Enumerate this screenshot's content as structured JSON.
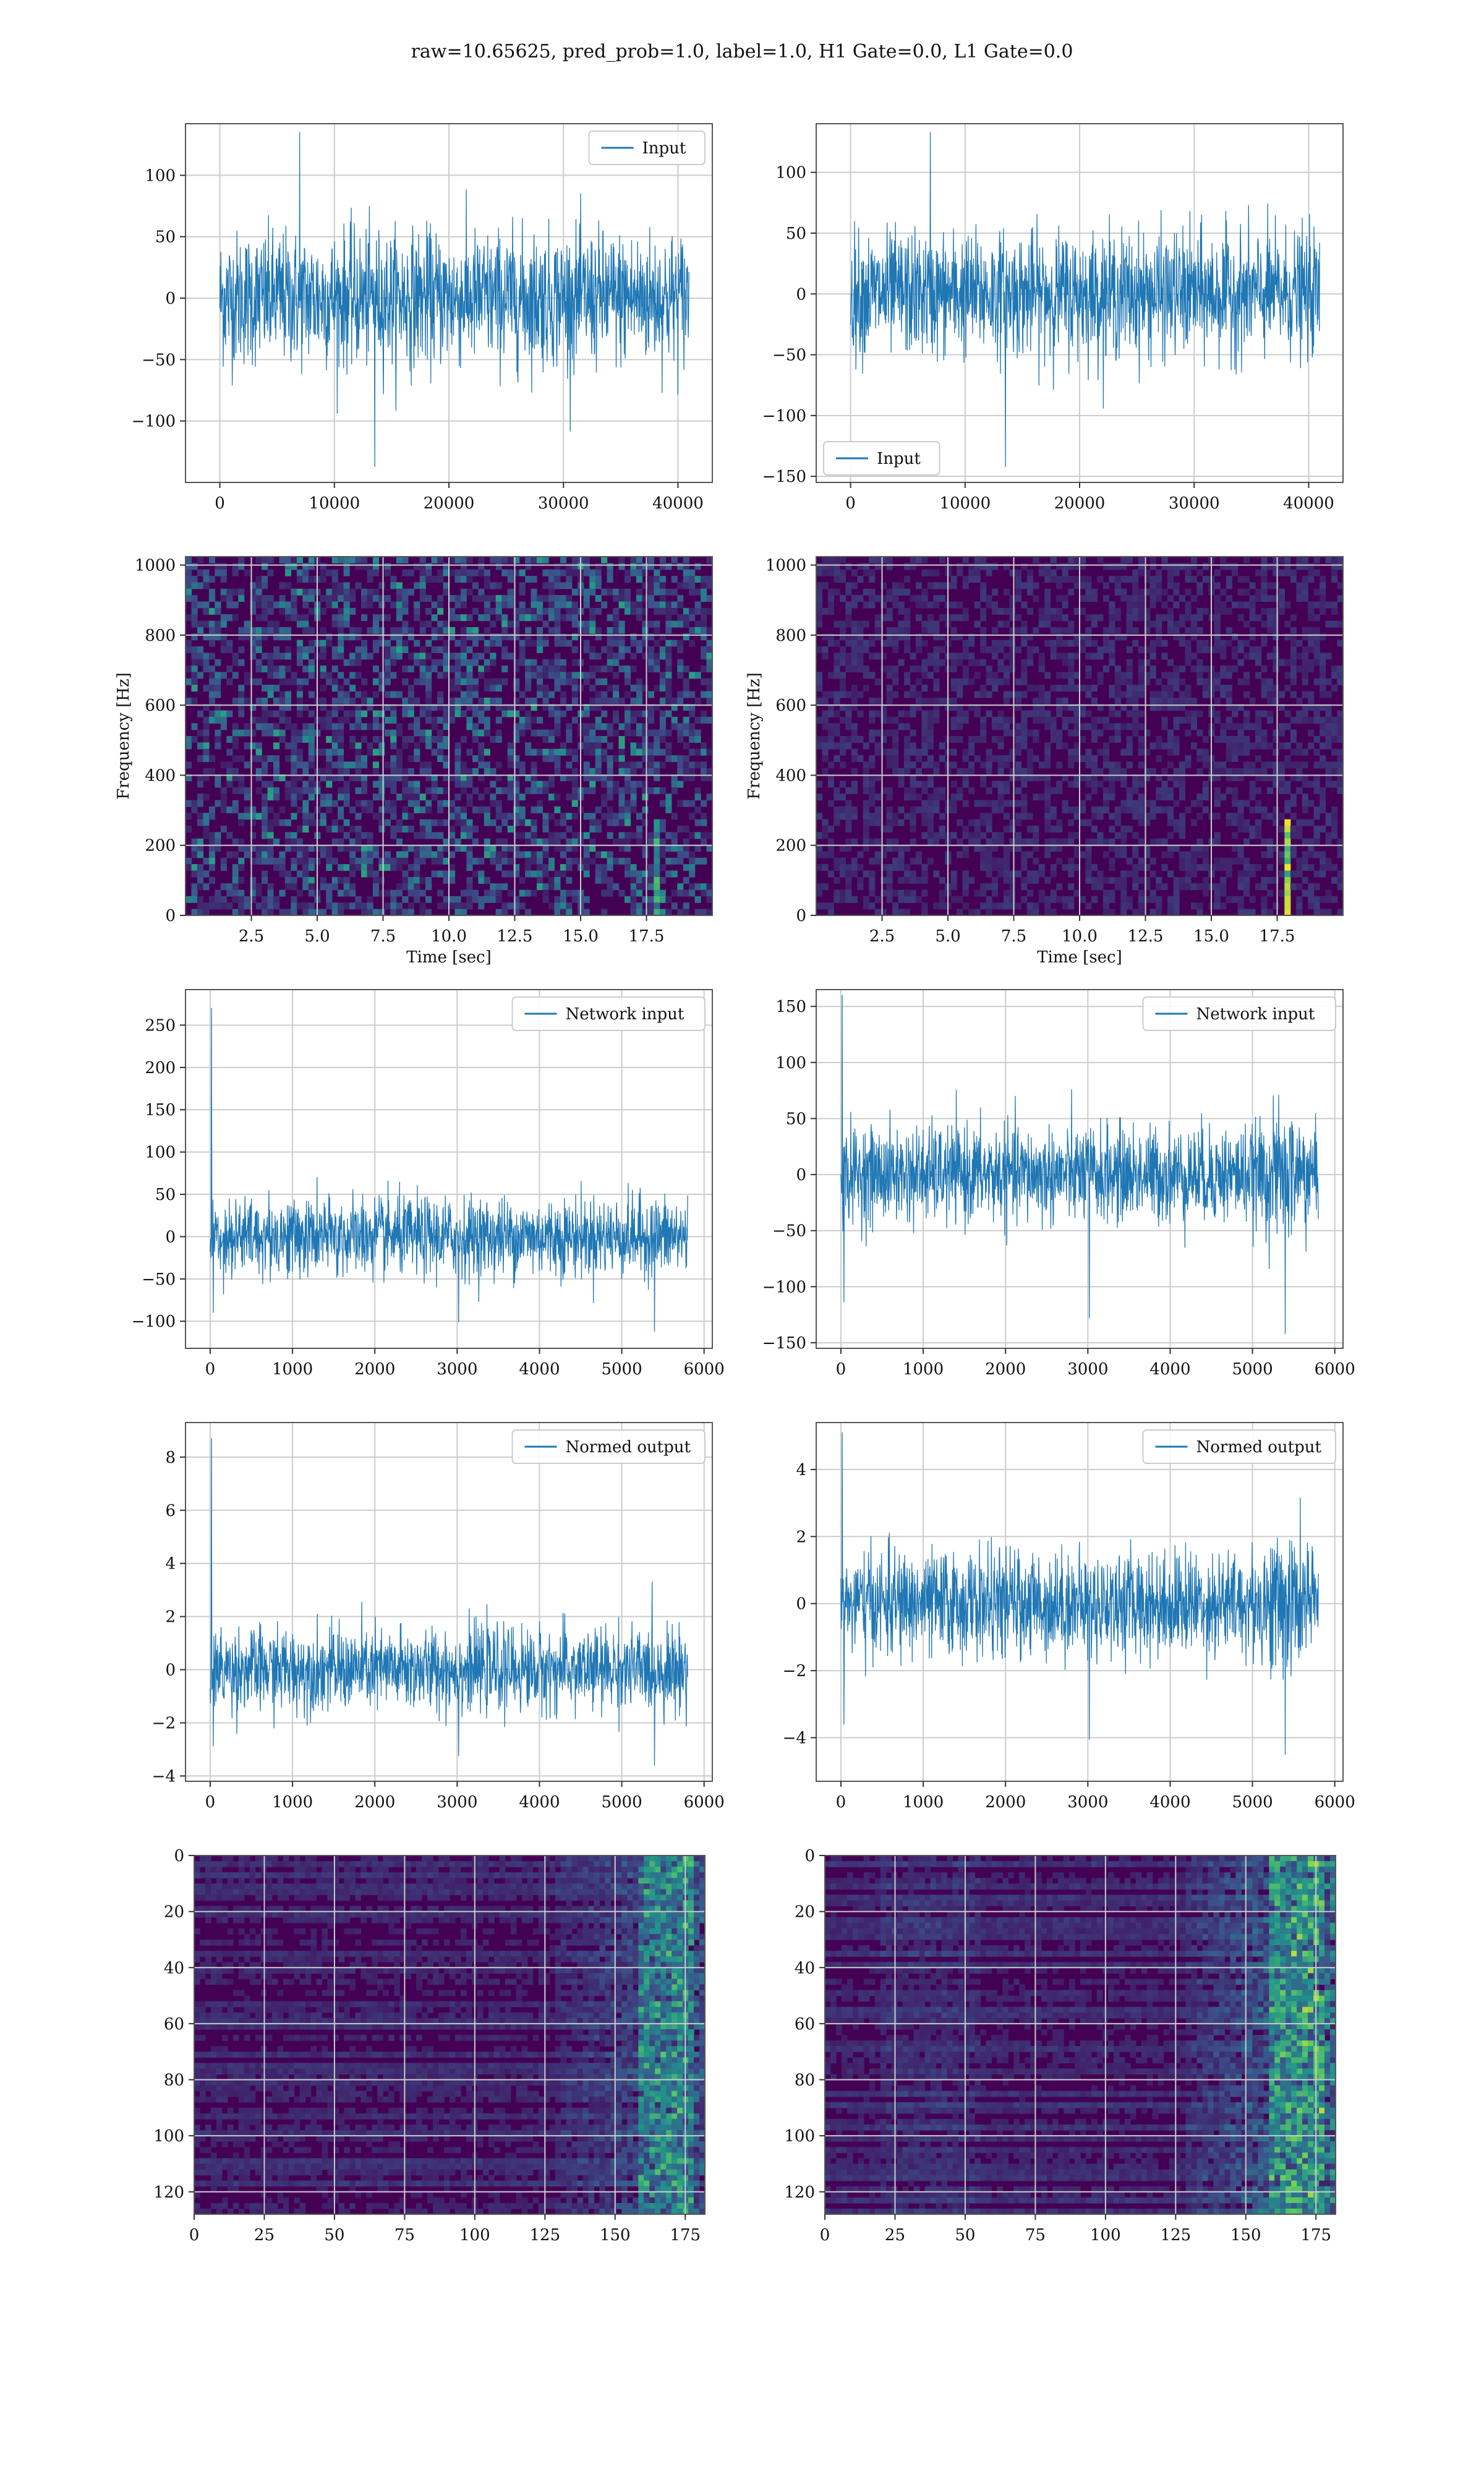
{
  "figure": {
    "title": "raw=10.65625, pred_prob=1.0, label=1.0, H1 Gate=0.0, L1 Gate=0.0",
    "colors": {
      "line": "#1f77b4",
      "grid": "#cccccc",
      "spec_low": "#440154",
      "spec_mid": "#21918c",
      "spec_high": "#fde725"
    }
  },
  "chart_data": [
    {
      "id": "r1c1",
      "type": "line",
      "title": "",
      "xlabel": "",
      "ylabel": "",
      "xlim": [
        -3000,
        43000
      ],
      "ylim": [
        -150,
        142
      ],
      "xticks": [
        0,
        10000,
        20000,
        30000,
        40000
      ],
      "xtick_labels": [
        "0",
        "10000",
        "20000",
        "30000",
        "40000"
      ],
      "yticks": [
        -100,
        -50,
        0,
        50,
        100
      ],
      "ytick_labels": [
        "−100",
        "−50",
        "0",
        "50",
        "100"
      ],
      "series": [
        {
          "name": "Input",
          "x_range": [
            0,
            40960
          ],
          "typical_range": [
            -70,
            70
          ],
          "extremes": [
            135,
            -137
          ]
        }
      ],
      "legend": "upper right",
      "grid": true
    },
    {
      "id": "r1c2",
      "type": "line",
      "title": "",
      "xlabel": "",
      "ylabel": "",
      "xlim": [
        -3000,
        43000
      ],
      "ylim": [
        -155,
        140
      ],
      "xticks": [
        0,
        10000,
        20000,
        30000,
        40000
      ],
      "xtick_labels": [
        "0",
        "10000",
        "20000",
        "30000",
        "40000"
      ],
      "yticks": [
        -150,
        -100,
        -50,
        0,
        50,
        100
      ],
      "ytick_labels": [
        "−150",
        "−100",
        "−50",
        "0",
        "50",
        "100"
      ],
      "series": [
        {
          "name": "Input",
          "x_range": [
            0,
            40960
          ],
          "typical_range": [
            -65,
            65
          ],
          "extremes": [
            133,
            -142
          ]
        }
      ],
      "legend": "lower left",
      "grid": true
    },
    {
      "id": "r2c1",
      "type": "heatmap",
      "title": "",
      "xlabel": "Time [sec]",
      "ylabel": "Frequency [Hz]",
      "xlim": [
        0,
        20
      ],
      "ylim": [
        0,
        1024
      ],
      "xticks": [
        2.5,
        5.0,
        7.5,
        10.0,
        12.5,
        15.0,
        17.5
      ],
      "xtick_labels": [
        "2.5",
        "5.0",
        "7.5",
        "10.0",
        "12.5",
        "15.0",
        "17.5"
      ],
      "yticks": [
        0,
        200,
        400,
        600,
        800,
        1000
      ],
      "ytick_labels": [
        "0",
        "200",
        "400",
        "600",
        "800",
        "1000"
      ],
      "colormap": "viridis",
      "grid": true
    },
    {
      "id": "r2c2",
      "type": "heatmap",
      "title": "",
      "xlabel": "Time [sec]",
      "ylabel": "Frequency [Hz]",
      "xlim": [
        0,
        20
      ],
      "ylim": [
        0,
        1024
      ],
      "xticks": [
        2.5,
        5.0,
        7.5,
        10.0,
        12.5,
        15.0,
        17.5
      ],
      "xtick_labels": [
        "2.5",
        "5.0",
        "7.5",
        "10.0",
        "12.5",
        "15.0",
        "17.5"
      ],
      "yticks": [
        0,
        200,
        400,
        600,
        800,
        1000
      ],
      "ytick_labels": [
        "0",
        "200",
        "400",
        "600",
        "800",
        "1000"
      ],
      "colormap": "viridis",
      "grid": true
    },
    {
      "id": "r3c1",
      "type": "line",
      "title": "",
      "xlabel": "",
      "ylabel": "",
      "xlim": [
        -300,
        6100
      ],
      "ylim": [
        -132,
        292
      ],
      "xticks": [
        0,
        1000,
        2000,
        3000,
        4000,
        5000,
        6000
      ],
      "xtick_labels": [
        "0",
        "1000",
        "2000",
        "3000",
        "4000",
        "5000",
        "6000"
      ],
      "yticks": [
        -100,
        -50,
        0,
        50,
        100,
        150,
        200,
        250
      ],
      "ytick_labels": [
        "−100",
        "−50",
        "0",
        "50",
        "100",
        "150",
        "200",
        "250"
      ],
      "series": [
        {
          "name": "Network input",
          "x_range": [
            0,
            5800
          ],
          "typical_range": [
            -60,
            60
          ],
          "extremes": [
            270,
            -112
          ]
        }
      ],
      "legend": "upper right",
      "grid": true
    },
    {
      "id": "r3c2",
      "type": "line",
      "title": "",
      "xlabel": "",
      "ylabel": "",
      "xlim": [
        -300,
        6100
      ],
      "ylim": [
        -155,
        165
      ],
      "xticks": [
        0,
        1000,
        2000,
        3000,
        4000,
        5000,
        6000
      ],
      "xtick_labels": [
        "0",
        "1000",
        "2000",
        "3000",
        "4000",
        "5000",
        "6000"
      ],
      "yticks": [
        -150,
        -100,
        -50,
        0,
        50,
        100,
        150
      ],
      "ytick_labels": [
        "−150",
        "−100",
        "−50",
        "0",
        "50",
        "100",
        "150"
      ],
      "series": [
        {
          "name": "Network input",
          "x_range": [
            0,
            5800
          ],
          "typical_range": [
            -55,
            55
          ],
          "extremes": [
            160,
            -142
          ]
        }
      ],
      "legend": "upper right",
      "grid": true
    },
    {
      "id": "r4c1",
      "type": "line",
      "title": "",
      "xlabel": "",
      "ylabel": "",
      "xlim": [
        -300,
        6100
      ],
      "ylim": [
        -4.2,
        9.3
      ],
      "xticks": [
        0,
        1000,
        2000,
        3000,
        4000,
        5000,
        6000
      ],
      "xtick_labels": [
        "0",
        "1000",
        "2000",
        "3000",
        "4000",
        "5000",
        "6000"
      ],
      "yticks": [
        -4,
        -2,
        0,
        2,
        4,
        6,
        8
      ],
      "ytick_labels": [
        "−4",
        "−2",
        "0",
        "2",
        "4",
        "6",
        "8"
      ],
      "series": [
        {
          "name": "Normed output",
          "x_range": [
            0,
            5800
          ],
          "typical_range": [
            -2,
            2
          ],
          "extremes": [
            8.7,
            -3.6
          ]
        }
      ],
      "legend": "upper right",
      "grid": true
    },
    {
      "id": "r4c2",
      "type": "line",
      "title": "",
      "xlabel": "",
      "ylabel": "",
      "xlim": [
        -300,
        6100
      ],
      "ylim": [
        -5.3,
        5.4
      ],
      "xticks": [
        0,
        1000,
        2000,
        3000,
        4000,
        5000,
        6000
      ],
      "xtick_labels": [
        "0",
        "1000",
        "2000",
        "3000",
        "4000",
        "5000",
        "6000"
      ],
      "yticks": [
        -4,
        -2,
        0,
        2,
        4
      ],
      "ytick_labels": [
        "−4",
        "−2",
        "0",
        "2",
        "4"
      ],
      "series": [
        {
          "name": "Normed output",
          "x_range": [
            0,
            5800
          ],
          "typical_range": [
            -2,
            2
          ],
          "extremes": [
            5.1,
            -4.5
          ]
        }
      ],
      "legend": "upper right",
      "grid": true
    },
    {
      "id": "r5c1",
      "type": "heatmap",
      "title": "",
      "xlabel": "",
      "ylabel": "",
      "xlim": [
        0,
        182
      ],
      "ylim": [
        128,
        0
      ],
      "xticks": [
        0,
        25,
        50,
        75,
        100,
        125,
        150,
        175
      ],
      "xtick_labels": [
        "0",
        "25",
        "50",
        "75",
        "100",
        "125",
        "150",
        "175"
      ],
      "yticks": [
        0,
        20,
        40,
        60,
        80,
        100,
        120
      ],
      "ytick_labels": [
        "0",
        "20",
        "40",
        "60",
        "80",
        "100",
        "120"
      ],
      "colormap": "viridis",
      "grid": true
    },
    {
      "id": "r5c2",
      "type": "heatmap",
      "title": "",
      "xlabel": "",
      "ylabel": "",
      "xlim": [
        0,
        182
      ],
      "ylim": [
        128,
        0
      ],
      "xticks": [
        0,
        25,
        50,
        75,
        100,
        125,
        150,
        175
      ],
      "xtick_labels": [
        "0",
        "25",
        "50",
        "75",
        "100",
        "125",
        "150",
        "175"
      ],
      "yticks": [
        0,
        20,
        40,
        60,
        80,
        100,
        120
      ],
      "ytick_labels": [
        "0",
        "20",
        "40",
        "60",
        "80",
        "100",
        "120"
      ],
      "colormap": "viridis",
      "grid": true
    }
  ]
}
